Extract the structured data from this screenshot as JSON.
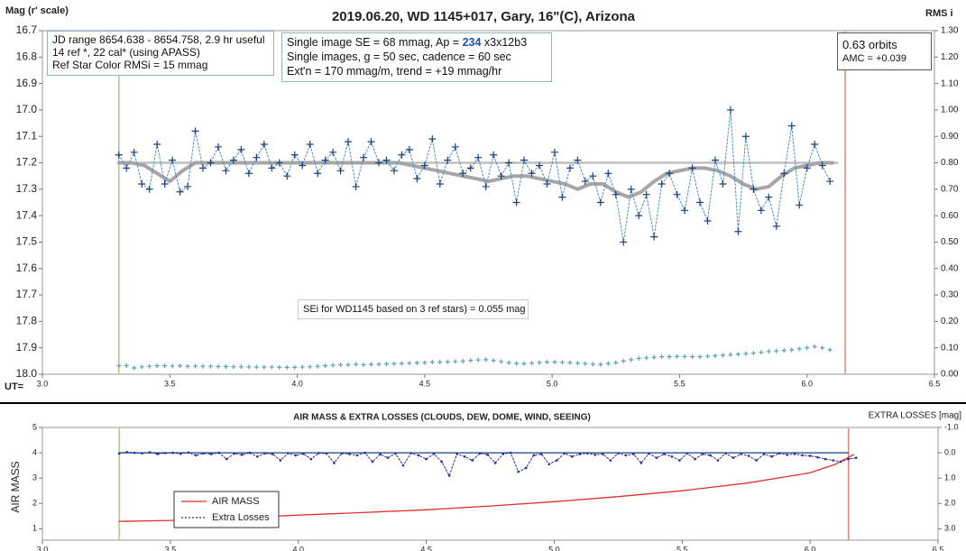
{
  "chart_data": [
    {
      "type": "scatter",
      "title": "2019.06.20, WD 1145+017, Gary, 16\"(C), Arizona",
      "ylabel": "Mag (r' scale)",
      "y2label": "RMS i",
      "xlabel": "UT=",
      "xlim": [
        3.0,
        6.5
      ],
      "xticks": [
        {
          "value": 3,
          "label": "3.0"
        },
        3.5,
        {
          "value": 4,
          "label": "4.0"
        },
        4.5,
        {
          "value": 5,
          "label": "5.0"
        },
        5.5,
        {
          "value": 6,
          "label": "6.0"
        },
        6.5
      ],
      "ylim": [
        18.0,
        16.7
      ],
      "yticks": [
        {
          "value": 16.7,
          "label": "16.7"
        },
        {
          "value": 16.8,
          "label": "16.8"
        },
        {
          "value": 16.9,
          "label": "16.9"
        },
        {
          "value": 17,
          "label": "17.0"
        },
        {
          "value": 17.1,
          "label": "17.1"
        },
        {
          "value": 17.2,
          "label": "17.2"
        },
        {
          "value": 17.3,
          "label": "17.3"
        },
        {
          "value": 17.4,
          "label": "17.4"
        },
        {
          "value": 17.5,
          "label": "17.5"
        },
        {
          "value": 17.6,
          "label": "17.6"
        },
        {
          "value": 17.7,
          "label": "17.7"
        },
        {
          "value": 17.8,
          "label": "17.8"
        },
        {
          "value": 17.9,
          "label": "17.9"
        },
        {
          "value": 18,
          "label": "18.0"
        }
      ],
      "y2lim": [
        0,
        1.3
      ],
      "y2ticks": [
        {
          "value": 1.3,
          "label": "1.30"
        },
        {
          "value": 1.2,
          "label": "1.20"
        },
        {
          "value": 1.1,
          "label": "1.10"
        },
        {
          "value": 1,
          "label": "1.00"
        },
        {
          "value": 0.9,
          "label": "0.90"
        },
        {
          "value": 0.8,
          "label": "0.80"
        },
        {
          "value": 0.7,
          "label": "0.70"
        },
        {
          "value": 0.6,
          "label": "0.60"
        },
        {
          "value": 0.5,
          "label": "0.50"
        },
        {
          "value": 0.4,
          "label": "0.40"
        },
        {
          "value": 0.3,
          "label": "0.30"
        },
        {
          "value": 0.2,
          "label": "0.20"
        },
        {
          "value": 0.1,
          "label": "0.10"
        },
        {
          "value": 0,
          "label": "0.00"
        }
      ],
      "vlines": [
        {
          "x": 3.3,
          "color": "#9fd17f"
        },
        {
          "x": 6.15,
          "color": "#f08080"
        }
      ],
      "series": [
        {
          "color": "#bfbfbf",
          "line": "solid",
          "width": 2.5,
          "x": [
            3.3,
            6.12
          ],
          "values": [
            17.2,
            17.2
          ]
        },
        {
          "color": "#a6a6a6",
          "line": "solid",
          "width": 4,
          "x": [
            3.3,
            3.35,
            3.4,
            3.45,
            3.5,
            3.55,
            3.6,
            3.65,
            3.7,
            3.75,
            3.8,
            3.85,
            3.9,
            3.95,
            4.0,
            4.05,
            4.1,
            4.15,
            4.2,
            4.25,
            4.3,
            4.35,
            4.4,
            4.45,
            4.5,
            4.55,
            4.6,
            4.65,
            4.7,
            4.75,
            4.8,
            4.85,
            4.9,
            4.95,
            5.0,
            5.05,
            5.1,
            5.15,
            5.2,
            5.25,
            5.3,
            5.35,
            5.4,
            5.45,
            5.5,
            5.55,
            5.6,
            5.65,
            5.7,
            5.75,
            5.8,
            5.85,
            5.9,
            5.95,
            6.0,
            6.05,
            6.1
          ],
          "values": [
            17.2,
            17.2,
            17.21,
            17.24,
            17.27,
            17.23,
            17.2,
            17.2,
            17.2,
            17.2,
            17.2,
            17.2,
            17.2,
            17.2,
            17.2,
            17.2,
            17.2,
            17.2,
            17.2,
            17.2,
            17.2,
            17.2,
            17.2,
            17.21,
            17.22,
            17.23,
            17.24,
            17.25,
            17.26,
            17.27,
            17.26,
            17.25,
            17.25,
            17.26,
            17.27,
            17.28,
            17.3,
            17.28,
            17.28,
            17.31,
            17.33,
            17.31,
            17.27,
            17.24,
            17.23,
            17.22,
            17.22,
            17.23,
            17.25,
            17.28,
            17.3,
            17.29,
            17.25,
            17.22,
            17.21,
            17.2,
            17.2
          ]
        },
        {
          "color": "#1f3f7f",
          "line": "dotted",
          "line_color": "#4a90c8",
          "marker": "+",
          "width": 1,
          "x": [
            3.3,
            3.33,
            3.36,
            3.39,
            3.42,
            3.45,
            3.48,
            3.51,
            3.54,
            3.57,
            3.6,
            3.63,
            3.66,
            3.69,
            3.72,
            3.75,
            3.78,
            3.81,
            3.84,
            3.87,
            3.9,
            3.93,
            3.96,
            3.99,
            4.02,
            4.05,
            4.08,
            4.11,
            4.14,
            4.17,
            4.2,
            4.23,
            4.26,
            4.29,
            4.32,
            4.35,
            4.38,
            4.41,
            4.44,
            4.47,
            4.5,
            4.53,
            4.56,
            4.59,
            4.62,
            4.65,
            4.68,
            4.71,
            4.74,
            4.77,
            4.8,
            4.83,
            4.86,
            4.89,
            4.92,
            4.95,
            4.98,
            5.01,
            5.04,
            5.07,
            5.1,
            5.13,
            5.16,
            5.19,
            5.22,
            5.25,
            5.28,
            5.31,
            5.34,
            5.37,
            5.4,
            5.43,
            5.46,
            5.49,
            5.52,
            5.55,
            5.58,
            5.61,
            5.64,
            5.67,
            5.7,
            5.73,
            5.76,
            5.79,
            5.82,
            5.85,
            5.88,
            5.91,
            5.94,
            5.97,
            6.0,
            6.03,
            6.06,
            6.09
          ],
          "values": [
            17.17,
            17.22,
            17.16,
            17.28,
            17.3,
            17.13,
            17.28,
            17.19,
            17.31,
            17.29,
            17.08,
            17.22,
            17.2,
            17.14,
            17.23,
            17.19,
            17.15,
            17.24,
            17.18,
            17.13,
            17.22,
            17.2,
            17.25,
            17.17,
            17.21,
            17.13,
            17.24,
            17.19,
            17.16,
            17.23,
            17.12,
            17.29,
            17.18,
            17.12,
            17.2,
            17.19,
            17.23,
            17.17,
            17.15,
            17.26,
            17.21,
            17.11,
            17.28,
            17.19,
            17.14,
            17.24,
            17.22,
            17.18,
            17.29,
            17.17,
            17.25,
            17.2,
            17.35,
            17.19,
            17.24,
            17.21,
            17.28,
            17.16,
            17.33,
            17.22,
            17.19,
            17.27,
            17.25,
            17.35,
            17.24,
            17.32,
            17.5,
            17.3,
            17.4,
            17.32,
            17.48,
            17.28,
            17.24,
            17.32,
            17.38,
            17.22,
            17.35,
            17.42,
            17.19,
            17.28,
            17.0,
            17.46,
            17.1,
            17.3,
            17.38,
            17.33,
            17.44,
            17.24,
            17.06,
            17.36,
            17.22,
            17.13,
            17.21,
            17.27
          ]
        },
        {
          "color": "#5ba3b0",
          "marker": "+",
          "axis": "y2",
          "size": 2.5,
          "x": [
            3.3,
            3.33,
            3.36,
            3.39,
            3.42,
            3.45,
            3.48,
            3.51,
            3.54,
            3.57,
            3.6,
            3.63,
            3.66,
            3.69,
            3.72,
            3.75,
            3.78,
            3.81,
            3.84,
            3.87,
            3.9,
            3.93,
            3.96,
            3.99,
            4.02,
            4.05,
            4.08,
            4.11,
            4.14,
            4.17,
            4.2,
            4.23,
            4.26,
            4.29,
            4.32,
            4.35,
            4.38,
            4.41,
            4.44,
            4.47,
            4.5,
            4.53,
            4.56,
            4.59,
            4.62,
            4.65,
            4.68,
            4.71,
            4.74,
            4.77,
            4.8,
            4.83,
            4.86,
            4.89,
            4.92,
            4.95,
            4.98,
            5.01,
            5.04,
            5.07,
            5.1,
            5.13,
            5.16,
            5.19,
            5.22,
            5.25,
            5.28,
            5.31,
            5.34,
            5.37,
            5.4,
            5.43,
            5.46,
            5.49,
            5.52,
            5.55,
            5.58,
            5.61,
            5.64,
            5.67,
            5.7,
            5.73,
            5.76,
            5.79,
            5.82,
            5.85,
            5.88,
            5.91,
            5.94,
            5.97,
            6.0,
            6.03,
            6.06,
            6.09
          ],
          "values": [
            0.032,
            0.033,
            0.024,
            0.028,
            0.03,
            0.032,
            0.032,
            0.031,
            0.032,
            0.03,
            0.031,
            0.03,
            0.03,
            0.029,
            0.029,
            0.028,
            0.028,
            0.028,
            0.027,
            0.027,
            0.027,
            0.026,
            0.026,
            0.026,
            0.027,
            0.028,
            0.03,
            0.032,
            0.034,
            0.036,
            0.036,
            0.037,
            0.036,
            0.037,
            0.038,
            0.039,
            0.04,
            0.041,
            0.042,
            0.043,
            0.044,
            0.046,
            0.046,
            0.047,
            0.048,
            0.05,
            0.052,
            0.054,
            0.055,
            0.052,
            0.048,
            0.044,
            0.041,
            0.04,
            0.042,
            0.044,
            0.046,
            0.046,
            0.045,
            0.044,
            0.042,
            0.04,
            0.038,
            0.037,
            0.04,
            0.044,
            0.05,
            0.055,
            0.06,
            0.062,
            0.064,
            0.066,
            0.066,
            0.067,
            0.067,
            0.066,
            0.066,
            0.068,
            0.07,
            0.072,
            0.074,
            0.076,
            0.078,
            0.08,
            0.083,
            0.086,
            0.088,
            0.09,
            0.092,
            0.096,
            0.1,
            0.105,
            0.1,
            0.092
          ]
        }
      ],
      "annotations": {
        "info": [
          "JD range 8654.638 - 8654.758, 2.9 hr useful",
          "14 ref *, 22 cal* (using APASS)",
          "Ref Star Color RMSi = 15 mmag"
        ],
        "image": {
          "first": [
            "Single image SE = 68 mmag, Ap = ",
            "234",
            " x3x12b3"
          ],
          "lines": [
            "Single images, g = 50 sec, cadence = 60 sec",
            "Ext'n = 170 mmag/m, trend = +19 mmag/hr"
          ]
        },
        "orbits": [
          "0.63 orbits",
          "AMC = +0.039"
        ],
        "sei": "SEi for WD1145 based on 3 ref stars) = 0.055 mag"
      }
    },
    {
      "type": "line",
      "title": "AIR MASS & EXTRA LOSSES (CLOUDS, DEW, DOME, WIND, SEEING)",
      "ylabel": "AIR MASS",
      "y2label": "EXTRA LOSSES [mag]",
      "xlim": [
        3.0,
        6.5
      ],
      "xticks": [
        {
          "value": 3,
          "label": "3.0"
        },
        3.5,
        {
          "value": 4,
          "label": "4.0"
        },
        4.5,
        {
          "value": 5,
          "label": "5.0"
        },
        5.5,
        {
          "value": 6,
          "label": "6.0"
        },
        6.5
      ],
      "ylim": [
        0.55,
        5
      ],
      "yticks": [
        1,
        2,
        3,
        4,
        5
      ],
      "y2lim": [
        3.45,
        -1.0
      ],
      "y2ticks": [
        {
          "value": -1,
          "label": "-1.0"
        },
        {
          "value": 0,
          "label": "0.0"
        },
        {
          "value": 1,
          "label": "1.0"
        },
        {
          "value": 2,
          "label": "2.0"
        },
        {
          "value": 3,
          "label": "3.0"
        }
      ],
      "vlines": [
        {
          "x": 3.3,
          "color": "#9fd17f"
        },
        {
          "x": 6.15,
          "color": "#f08080"
        }
      ],
      "hlines": [
        {
          "x": [
            3.3,
            6.15
          ],
          "y2": 0,
          "color": "#1f3f7f"
        }
      ],
      "legend": "lower left",
      "series": [
        {
          "name": "AIR MASS",
          "color": "#e03030",
          "line": "solid",
          "width": 1.3,
          "x": [
            3.3,
            3.5,
            3.75,
            4.0,
            4.25,
            4.5,
            4.75,
            5.0,
            5.25,
            5.5,
            5.75,
            6.0,
            6.1,
            6.17
          ],
          "values": [
            1.29,
            1.33,
            1.42,
            1.54,
            1.64,
            1.75,
            1.9,
            2.07,
            2.27,
            2.5,
            2.8,
            3.21,
            3.55,
            3.93
          ]
        },
        {
          "name": "Extra Losses",
          "color": "#2030a0",
          "line": "dotted",
          "marker": "dot",
          "axis": "y2",
          "width": 1,
          "x": [
            3.3,
            3.33,
            3.36,
            3.39,
            3.42,
            3.45,
            3.48,
            3.51,
            3.54,
            3.57,
            3.6,
            3.63,
            3.66,
            3.69,
            3.72,
            3.75,
            3.78,
            3.81,
            3.84,
            3.87,
            3.9,
            3.93,
            3.96,
            3.99,
            4.02,
            4.05,
            4.08,
            4.11,
            4.14,
            4.17,
            4.2,
            4.23,
            4.26,
            4.29,
            4.32,
            4.35,
            4.38,
            4.41,
            4.44,
            4.47,
            4.5,
            4.53,
            4.56,
            4.59,
            4.62,
            4.65,
            4.68,
            4.71,
            4.74,
            4.77,
            4.8,
            4.83,
            4.86,
            4.89,
            4.92,
            4.95,
            4.98,
            5.01,
            5.04,
            5.07,
            5.1,
            5.13,
            5.16,
            5.19,
            5.22,
            5.25,
            5.28,
            5.31,
            5.34,
            5.37,
            5.4,
            5.43,
            5.46,
            5.49,
            5.52,
            5.55,
            5.58,
            5.61,
            5.64,
            5.67,
            5.7,
            5.73,
            5.76,
            5.79,
            5.82,
            5.85,
            5.88,
            5.91,
            5.94,
            5.97,
            6.0,
            6.03,
            6.06,
            6.09,
            6.12,
            6.15,
            6.18
          ],
          "values": [
            0.03,
            -0.03,
            0.0,
            0.02,
            -0.02,
            0.05,
            0.01,
            0.0,
            0.04,
            -0.01,
            0.1,
            0.02,
            0.05,
            0.0,
            0.25,
            0.03,
            0.08,
            0.0,
            0.15,
            0.02,
            0.05,
            0.3,
            0.02,
            0.1,
            0.04,
            0.25,
            0.01,
            0.03,
            0.4,
            0.02,
            0.05,
            0.1,
            0.0,
            0.35,
            0.06,
            0.2,
            0.03,
            0.5,
            0.02,
            0.1,
            0.25,
            0.04,
            0.35,
            0.9,
            0.05,
            0.15,
            0.3,
            0.02,
            0.08,
            0.4,
            0.05,
            0.0,
            0.75,
            0.6,
            0.1,
            0.05,
            0.45,
            0.3,
            0.02,
            0.15,
            0.05,
            0.02,
            0.08,
            0.05,
            0.3,
            0.02,
            0.1,
            0.05,
            0.4,
            0.03,
            0.2,
            0.05,
            0.15,
            0.3,
            0.02,
            0.25,
            0.05,
            0.1,
            0.3,
            0.02,
            0.2,
            0.05,
            0.12,
            0.3,
            0.05,
            0.15,
            0.02,
            0.08,
            0.05,
            0.1,
            0.12,
            0.18,
            0.25,
            0.3,
            0.35,
            0.25,
            0.2
          ]
        }
      ]
    }
  ]
}
